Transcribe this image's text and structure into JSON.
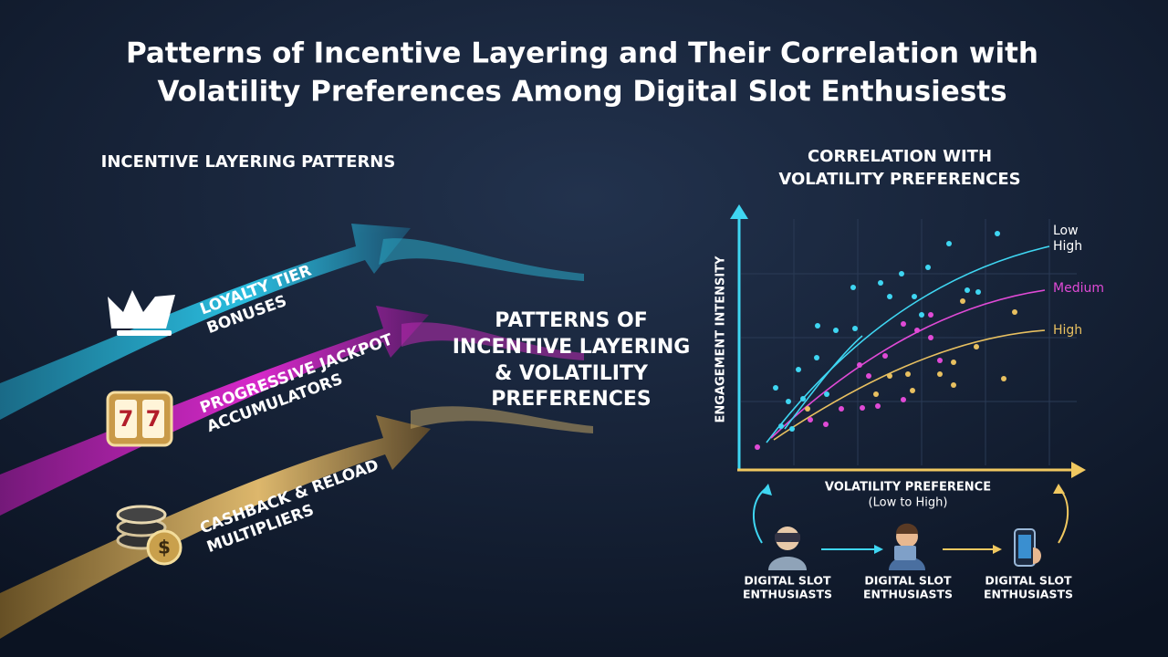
{
  "header": {
    "title_lines": [
      "Patterns of Incentive Layering and Their Correlation with",
      "Volatility Preferences Among Digital Slot Enthusiests"
    ]
  },
  "left": {
    "heading": "INCENTIVE LAYERING PATTERNS",
    "items": [
      {
        "lines": [
          "LOYALTY TIER",
          "BONUSES"
        ]
      },
      {
        "lines": [
          "PROGRESSIVE JACKPOT",
          "ACCUMULATORS"
        ]
      },
      {
        "lines": [
          "CASHBACK & RELOAD",
          "MULTIPLIERS"
        ]
      }
    ]
  },
  "center": {
    "lines": [
      "PATTERNS OF",
      "INCENTIVE LAYERING",
      "& VOLATILITY",
      "PREFERENCES"
    ]
  },
  "right": {
    "heading_lines": [
      "CORRELATION WITH",
      "VOLATILITY PREFERENCES"
    ],
    "y_axis": "ENGAGEMENT INTENSITY",
    "x_axis": "VOLATILITY PREFERENCE",
    "x_axis_note": "(Low to High)",
    "curve_labels": [
      "Low",
      "High",
      "Medium",
      "High"
    ],
    "personas": [
      {
        "lines": [
          "DIGITAL SLOT",
          "ENTHUSIASTS"
        ]
      },
      {
        "lines": [
          "DIGITAL SLOT",
          "ENTHUSIASTS"
        ]
      },
      {
        "lines": [
          "DIGITAL SLOT",
          "ENTHUSIASTS"
        ]
      }
    ]
  }
}
